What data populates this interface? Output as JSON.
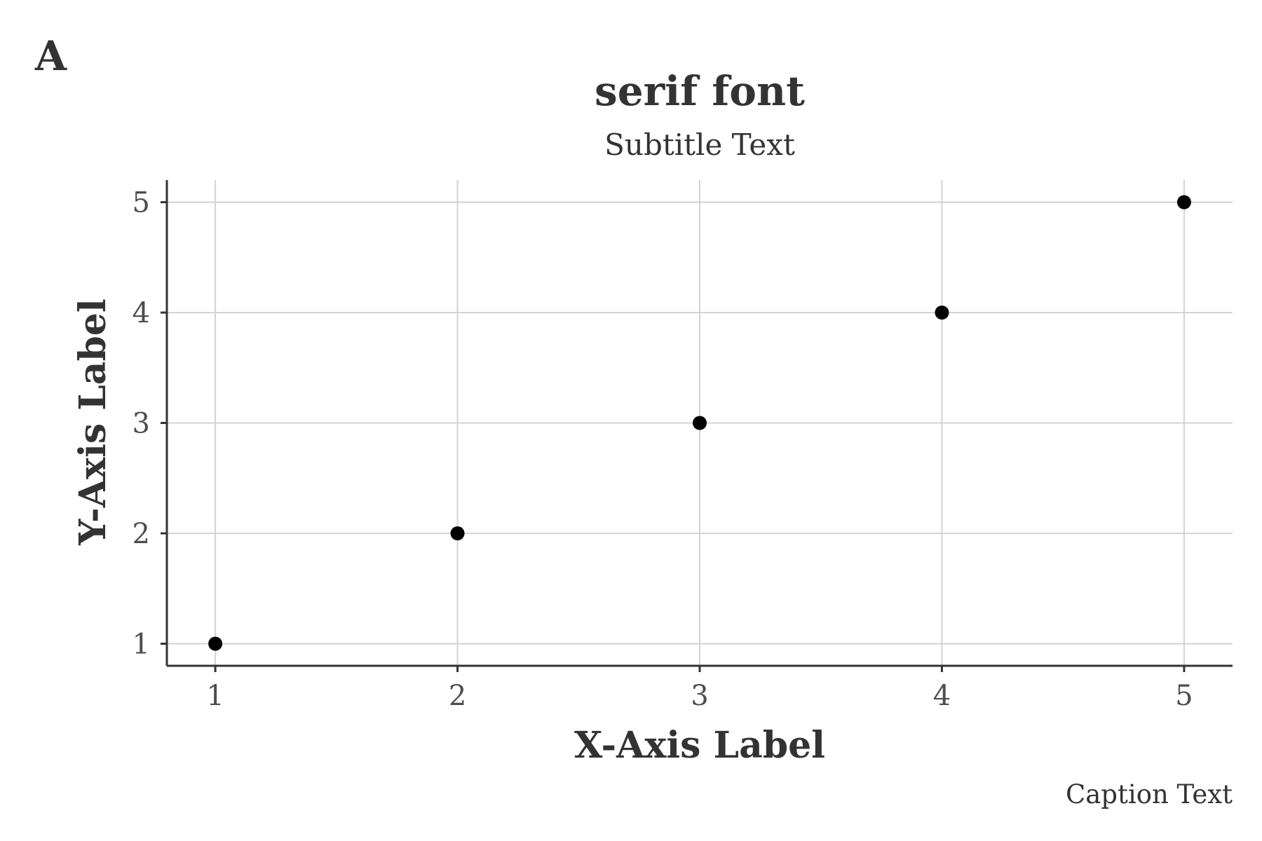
{
  "chart_data": {
    "type": "scatter",
    "tag": "A",
    "title": "serif font",
    "subtitle": "Subtitle Text",
    "xlabel": "X-Axis Label",
    "ylabel": "Y-Axis Label",
    "caption": "Caption Text",
    "xlim": [
      0.8,
      5.2
    ],
    "ylim": [
      0.8,
      5.2
    ],
    "x_ticks": [
      1,
      2,
      3,
      4,
      5
    ],
    "y_ticks": [
      1,
      2,
      3,
      4,
      5
    ],
    "grid": true,
    "points": [
      {
        "x": 1,
        "y": 1
      },
      {
        "x": 2,
        "y": 2
      },
      {
        "x": 3,
        "y": 3
      },
      {
        "x": 4,
        "y": 4
      },
      {
        "x": 5,
        "y": 5
      }
    ],
    "colors": {
      "point": "#000000",
      "grid": "#d3d3d3",
      "axis": "#333333"
    }
  }
}
